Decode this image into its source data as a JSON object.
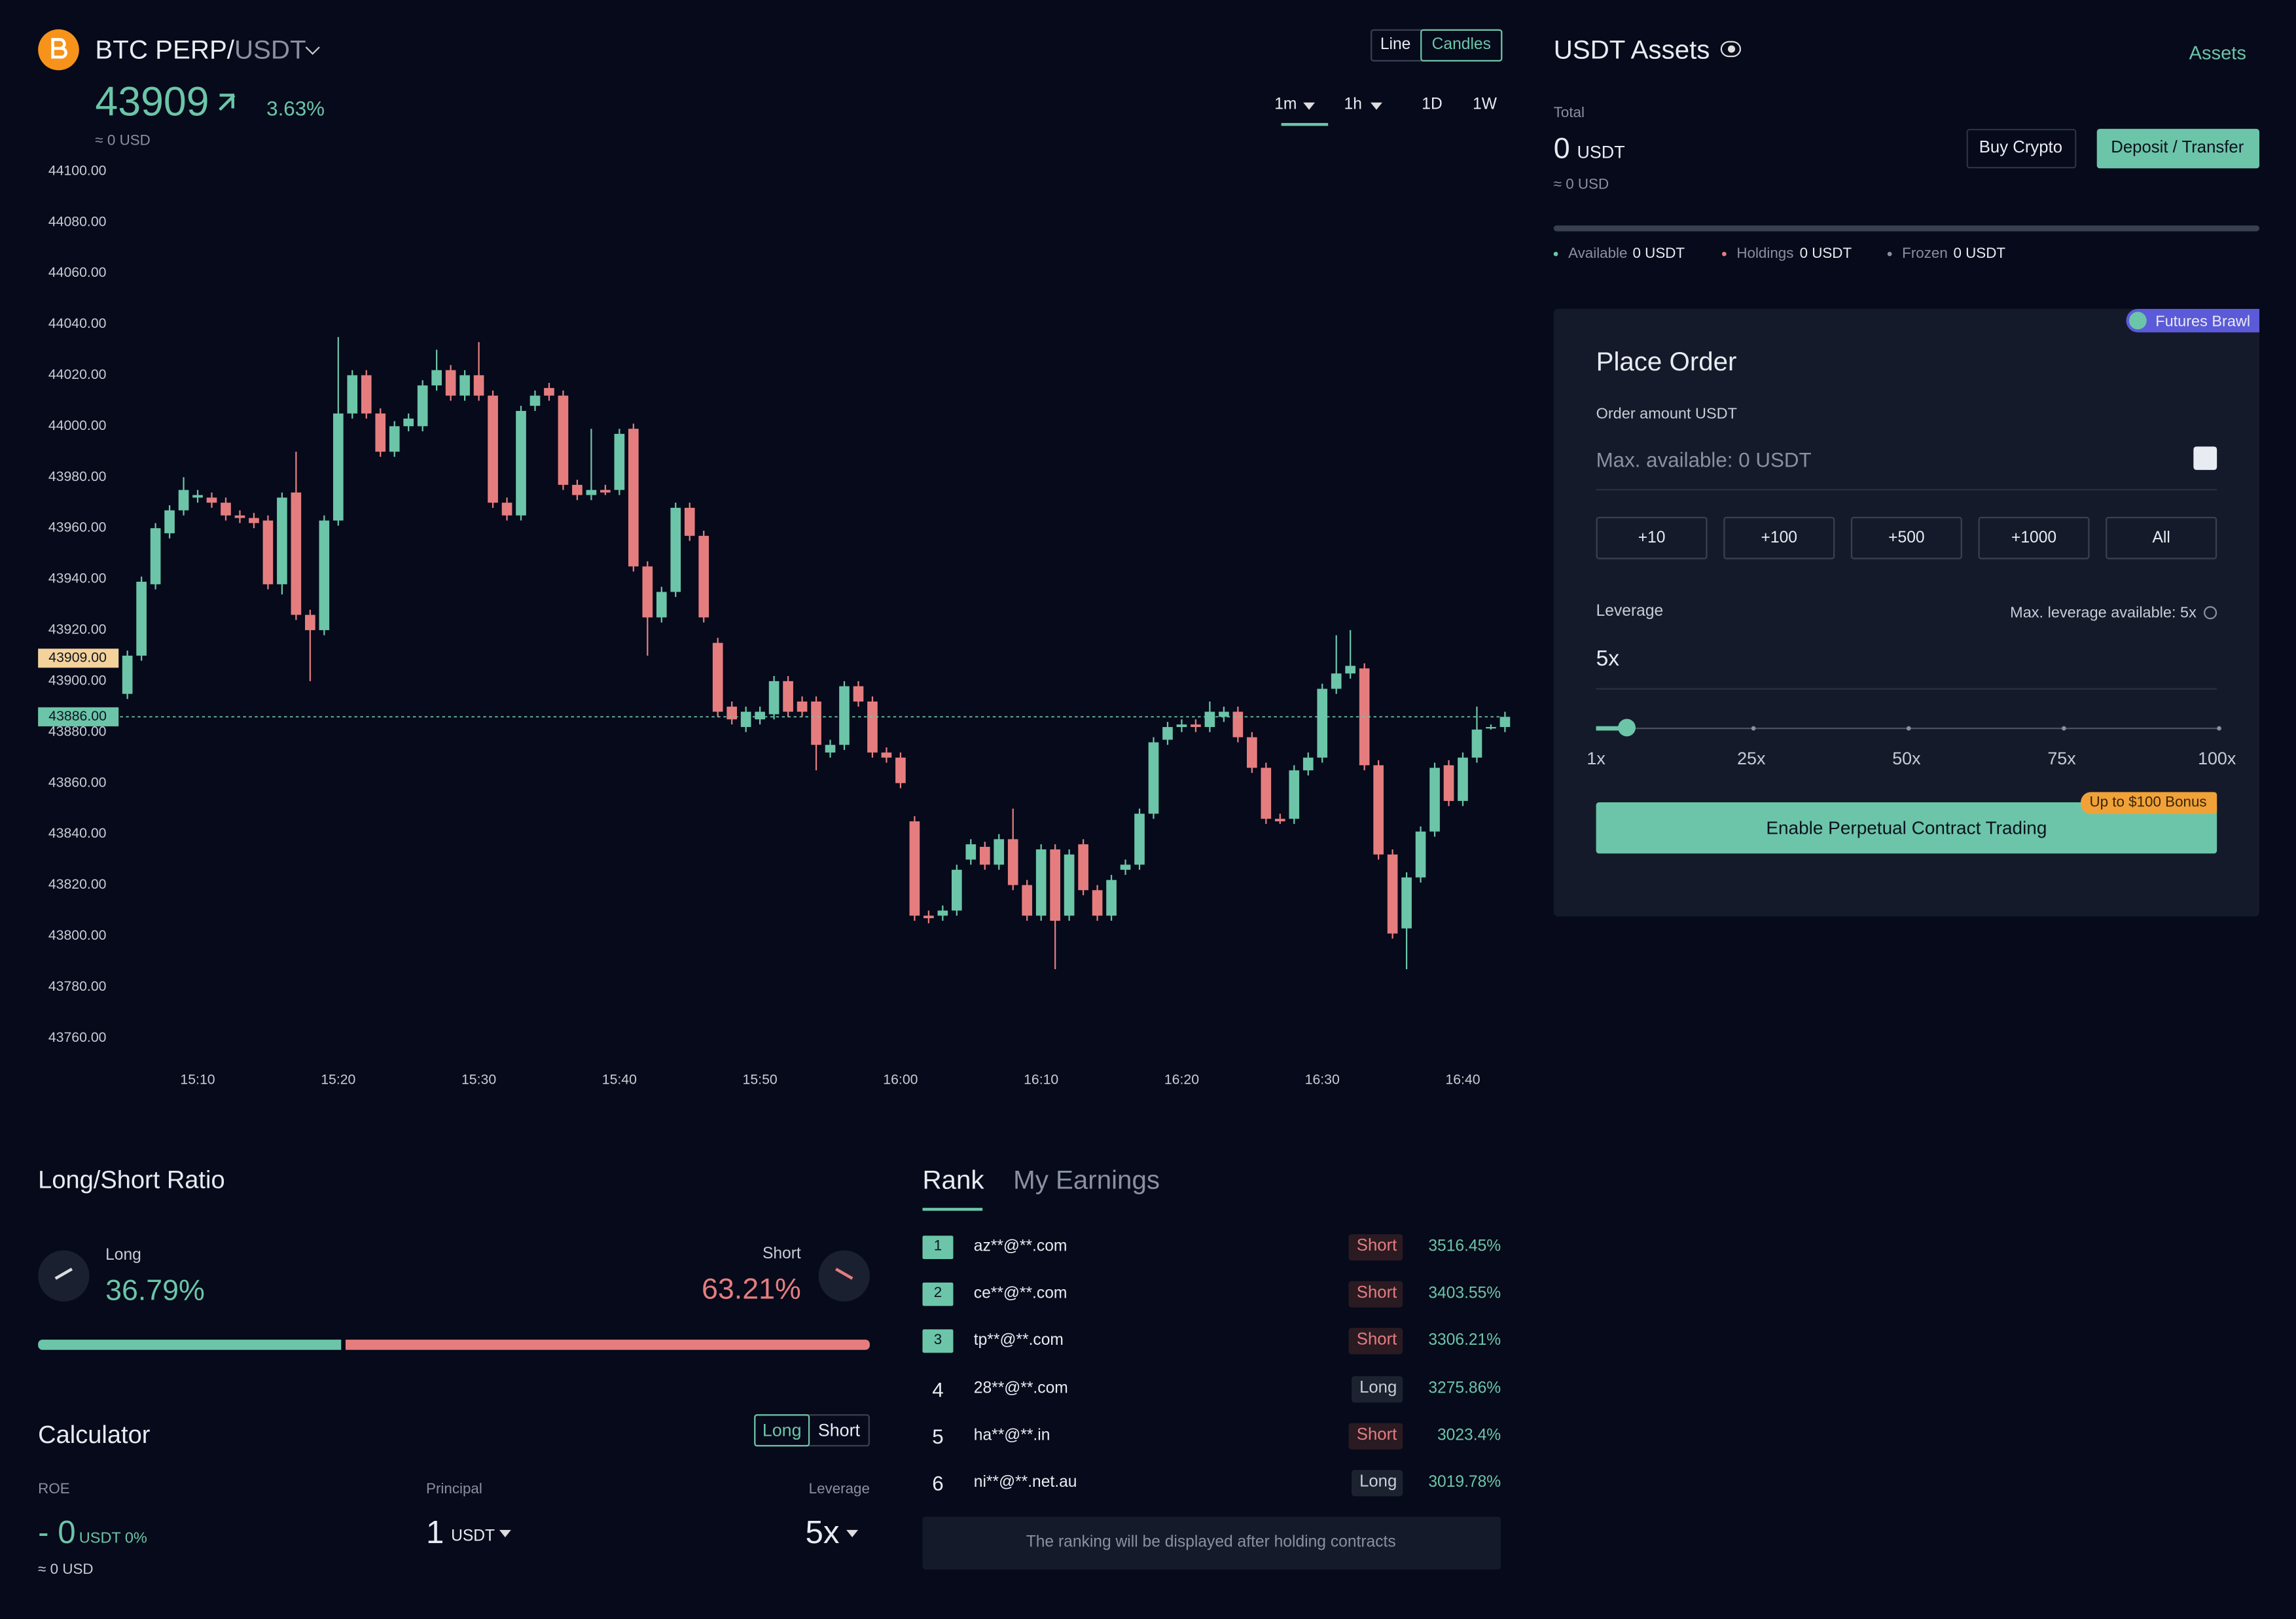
{
  "header": {
    "symbol_base": "BTC PERP/",
    "symbol_quote": "USDT",
    "price": "43909",
    "change": "3.63%",
    "usd": "≈ 0 USD",
    "chart_modes": [
      "Line",
      "Candles"
    ],
    "intervals": [
      "1m",
      "1h",
      "1D",
      "1W"
    ]
  },
  "chart_data": {
    "type": "candlestick",
    "x": [
      "15:05",
      "15:06",
      "15:07",
      "15:08",
      "15:09",
      "15:10",
      "15:11",
      "15:12",
      "15:13",
      "15:14",
      "15:15",
      "15:16",
      "15:17",
      "15:18",
      "15:19",
      "15:20",
      "15:21",
      "15:22",
      "15:23",
      "15:24",
      "15:25",
      "15:26",
      "15:27",
      "15:28",
      "15:29",
      "15:30",
      "15:31",
      "15:32",
      "15:33",
      "15:34",
      "15:35",
      "15:36",
      "15:37",
      "15:38",
      "15:39",
      "15:40",
      "15:41",
      "15:42",
      "15:43",
      "15:44",
      "15:45",
      "15:46",
      "15:47",
      "15:48",
      "15:49",
      "15:50",
      "15:51",
      "15:52",
      "15:53",
      "15:54",
      "15:55",
      "15:56",
      "15:57",
      "15:58",
      "15:59",
      "16:00",
      "16:01",
      "16:02",
      "16:03",
      "16:04",
      "16:05",
      "16:06",
      "16:07",
      "16:08",
      "16:09",
      "16:10",
      "16:11",
      "16:12",
      "16:13",
      "16:14",
      "16:15",
      "16:16",
      "16:17",
      "16:18",
      "16:19",
      "16:20",
      "16:21",
      "16:22",
      "16:23",
      "16:24",
      "16:25",
      "16:26",
      "16:27",
      "16:28",
      "16:29",
      "16:30",
      "16:31",
      "16:32",
      "16:33",
      "16:34",
      "16:35",
      "16:36",
      "16:37",
      "16:38",
      "16:39",
      "16:40",
      "16:41",
      "16:42",
      "16:43"
    ],
    "open": [
      43895,
      43910,
      43938,
      43958,
      43967,
      43972,
      43972,
      43970,
      43965,
      43964,
      43963,
      43938,
      43974,
      43926,
      43920,
      43963,
      44005,
      44020,
      44005,
      43990,
      44000,
      44000,
      44016,
      44022,
      44012,
      44020,
      44012,
      43970,
      43965,
      44008,
      44015,
      44012,
      43977,
      43973,
      43975,
      43975,
      43999,
      43945,
      43925,
      43935,
      43968,
      43957,
      43915,
      43890,
      43882,
      43885,
      43887,
      43900,
      43892,
      43892,
      43872,
      43875,
      43898,
      43892,
      43872,
      43870,
      43845,
      43808,
      43808,
      43810,
      43830,
      43835,
      43828,
      43838,
      43820,
      43808,
      43834,
      43808,
      43836,
      43818,
      43808,
      43826,
      43828,
      43848,
      43877,
      43882,
      43883,
      43882,
      43886,
      43888,
      43878,
      43866,
      43846,
      43846,
      43865,
      43870,
      43897,
      43903,
      43905,
      43867,
      43832,
      43803,
      43823,
      43841,
      43867,
      43853,
      43870,
      43882,
      43882
    ],
    "high": [
      43912,
      43941,
      43962,
      43969,
      43980,
      43975,
      43974,
      43972,
      43967,
      43966,
      43965,
      43974,
      43990,
      43928,
      43965,
      44035,
      44022,
      44022,
      44007,
      44002,
      44005,
      44018,
      44030,
      44024,
      44022,
      44033,
      44014,
      43972,
      44008,
      44014,
      44017,
      44014,
      43979,
      43999,
      43977,
      43999,
      44001,
      43947,
      43937,
      43970,
      43970,
      43959,
      43917,
      43892,
      43890,
      43890,
      43902,
      43902,
      43894,
      43894,
      43877,
      43900,
      43900,
      43894,
      43874,
      43872,
      43847,
      43810,
      43812,
      43828,
      43838,
      43837,
      43840,
      43850,
      43822,
      43836,
      43836,
      43834,
      43838,
      43820,
      43824,
      43830,
      43850,
      43878,
      43884,
      43885,
      43885,
      43892,
      43890,
      43890,
      43880,
      43868,
      43848,
      43867,
      43872,
      43899,
      43918,
      43920,
      43907,
      43869,
      43834,
      43825,
      43843,
      43868,
      43869,
      43872,
      43890,
      43883,
      43888
    ],
    "low": [
      43893,
      43908,
      43936,
      43956,
      43965,
      43970,
      43968,
      43963,
      43962,
      43960,
      43936,
      43934,
      43924,
      43900,
      43918,
      43961,
      44003,
      44003,
      43988,
      43988,
      43998,
      43998,
      44014,
      44010,
      44010,
      44010,
      43968,
      43963,
      43963,
      44006,
      44010,
      43975,
      43971,
      43971,
      43973,
      43973,
      43943,
      43910,
      43923,
      43933,
      43955,
      43923,
      43886,
      43883,
      43880,
      43883,
      43885,
      43886,
      43886,
      43865,
      43870,
      43873,
      43890,
      43870,
      43868,
      43858,
      43806,
      43805,
      43806,
      43808,
      43828,
      43826,
      43826,
      43818,
      43806,
      43806,
      43787,
      43806,
      43816,
      43806,
      43806,
      43824,
      43826,
      43846,
      43875,
      43880,
      43880,
      43880,
      43884,
      43876,
      43864,
      43844,
      43844,
      43844,
      43863,
      43868,
      43895,
      43901,
      43865,
      43830,
      43799,
      43787,
      43821,
      43839,
      43851,
      43851,
      43868,
      43881,
      43880
    ],
    "close": [
      43910,
      43939,
      43960,
      43967,
      43975,
      43973,
      43970,
      43965,
      43964,
      43962,
      43938,
      43972,
      43926,
      43920,
      43963,
      44005,
      44020,
      44005,
      43990,
      44000,
      44003,
      44016,
      44022,
      44012,
      44020,
      44012,
      43970,
      43965,
      44006,
      44012,
      44012,
      43977,
      43973,
      43975,
      43974,
      43997,
      43945,
      43925,
      43935,
      43968,
      43957,
      43925,
      43888,
      43885,
      43888,
      43888,
      43900,
      43888,
      43888,
      43875,
      43875,
      43898,
      43892,
      43872,
      43870,
      43860,
      43808,
      43807,
      43810,
      43826,
      43836,
      43828,
      43838,
      43820,
      43808,
      43834,
      43806,
      43832,
      43818,
      43808,
      43822,
      43828,
      43848,
      43876,
      43882,
      43883,
      43882,
      43888,
      43888,
      43878,
      43866,
      43846,
      43845,
      43865,
      43870,
      43897,
      43903,
      43906,
      43867,
      43832,
      43801,
      43823,
      43841,
      43866,
      43853,
      43870,
      43881,
      43882,
      43886
    ],
    "up_color": "#6cc5a8",
    "down_color": "#e57d7f",
    "ylim": [
      43760,
      44100
    ],
    "yticks": [
      {
        "value": 44100,
        "label": "44100.00"
      },
      {
        "value": 44080,
        "label": "44080.00"
      },
      {
        "value": 44060,
        "label": "44060.00"
      },
      {
        "value": 44040,
        "label": "44040.00"
      },
      {
        "value": 44020,
        "label": "44020.00"
      },
      {
        "value": 44000,
        "label": "44000.00"
      },
      {
        "value": 43980,
        "label": "43980.00"
      },
      {
        "value": 43960,
        "label": "43960.00"
      },
      {
        "value": 43940,
        "label": "43940.00"
      },
      {
        "value": 43920,
        "label": "43920.00"
      },
      {
        "value": 43900,
        "label": "43900.00"
      },
      {
        "value": 43880,
        "label": "43880.00"
      },
      {
        "value": 43860,
        "label": "43860.00"
      },
      {
        "value": 43840,
        "label": "43840.00"
      },
      {
        "value": 43820,
        "label": "43820.00"
      },
      {
        "value": 43800,
        "label": "43800.00"
      },
      {
        "value": 43780,
        "label": "43780.00"
      },
      {
        "value": 43760,
        "label": "43760.00"
      }
    ],
    "price_markers": [
      {
        "value": 43909,
        "label": "43909.00",
        "color": "#f4d29c"
      },
      {
        "value": 43886,
        "label": "43886.00",
        "color": "#6cc5a8"
      }
    ]
  },
  "assets": {
    "title": "USDT Assets",
    "link": "Assets",
    "total_label": "Total",
    "total_value": "0",
    "total_unit": "USDT",
    "total_usd": "≈ 0 USD",
    "buttons": [
      "Buy Crypto",
      "Deposit / Transfer"
    ],
    "breakdown": [
      {
        "label": "Available",
        "value": "0 USDT"
      },
      {
        "label": "Holdings",
        "value": "0 USDT"
      },
      {
        "label": "Frozen",
        "value": "0 USDT"
      }
    ]
  },
  "order": {
    "badge": "Futures Brawl",
    "title": "Place Order",
    "amount_label": "Order amount USDT",
    "amount_placeholder": "Max. available: 0 USDT",
    "quick_amounts": [
      "+10",
      "+100",
      "+500",
      "+1000",
      "All"
    ],
    "leverage_label": "Leverage",
    "max_leverage": "Max. leverage available: 5x",
    "leverage_value": "5x",
    "slider_marks": [
      "1x",
      "25x",
      "50x",
      "75x",
      "100x"
    ],
    "button": "Enable Perpetual Contract Trading",
    "bonus": "Up to $100 Bonus"
  },
  "long_short": {
    "title": "Long/Short Ratio",
    "labels": [
      "Long",
      "Short"
    ],
    "values": [
      36.79,
      63.21
    ],
    "value_labels": [
      "36.79%",
      "63.21%"
    ]
  },
  "calculator": {
    "title": "Calculator",
    "sides": [
      "Long",
      "Short"
    ],
    "roe_label": "ROE",
    "roe_value": "- 0",
    "roe_unit": "USDT 0%",
    "roe_usd": "≈ 0 USD",
    "principal_label": "Principal",
    "principal_value": "1",
    "principal_unit": "USDT",
    "leverage_label": "Leverage",
    "leverage_value": "5x"
  },
  "rank": {
    "tabs": [
      "Rank",
      "My Earnings"
    ],
    "rows": [
      {
        "rank": "1",
        "user": "az**@**.com",
        "side": "Short",
        "return": "3516.45%"
      },
      {
        "rank": "2",
        "user": "ce**@**.com",
        "side": "Short",
        "return": "3403.55%"
      },
      {
        "rank": "3",
        "user": "tp**@**.com",
        "side": "Short",
        "return": "3306.21%"
      },
      {
        "rank": "4",
        "user": "28**@**.com",
        "side": "Long",
        "return": "3275.86%"
      },
      {
        "rank": "5",
        "user": "ha**@**.in",
        "side": "Short",
        "return": "3023.4%"
      },
      {
        "rank": "6",
        "user": "ni**@**.net.au",
        "side": "Long",
        "return": "3019.78%"
      }
    ],
    "note": "The ranking will be displayed after holding contracts"
  }
}
